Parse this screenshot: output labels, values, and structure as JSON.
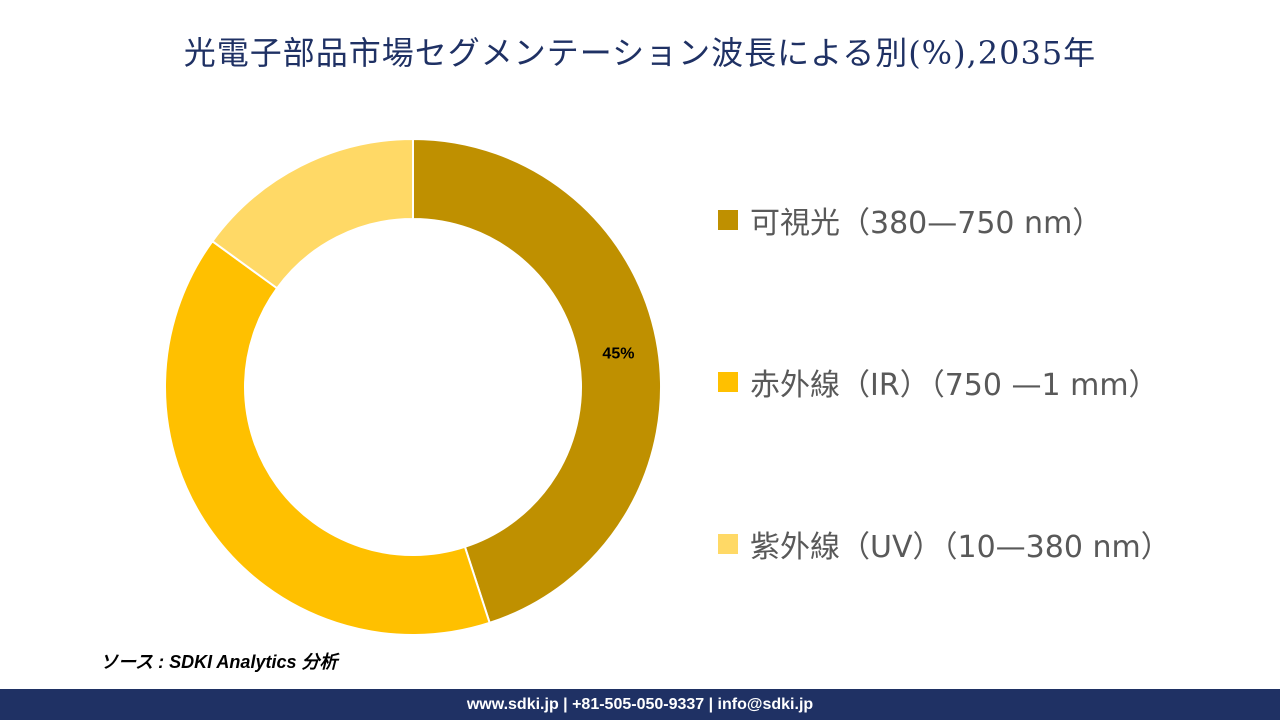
{
  "chart_data": {
    "type": "pie",
    "title": "光電子部品市場セグメンテーション波長による別(%),2035年",
    "categories": [
      "可視光（380—750 nm）",
      "赤外線（IR）（750 —1 mm）",
      "紫外線（UV）（10—380 nm）"
    ],
    "values": [
      45,
      40,
      15
    ],
    "colors": [
      "#bf9000",
      "#ffc000",
      "#ffd966"
    ],
    "data_labels": [
      "45%",
      "",
      ""
    ],
    "donut": true,
    "legend_position": "right"
  },
  "source_text": "ソース : SDKI Analytics 分析",
  "footer_text": "www.sdki.jp | +81-505-050-9337 | info@sdki.jp"
}
